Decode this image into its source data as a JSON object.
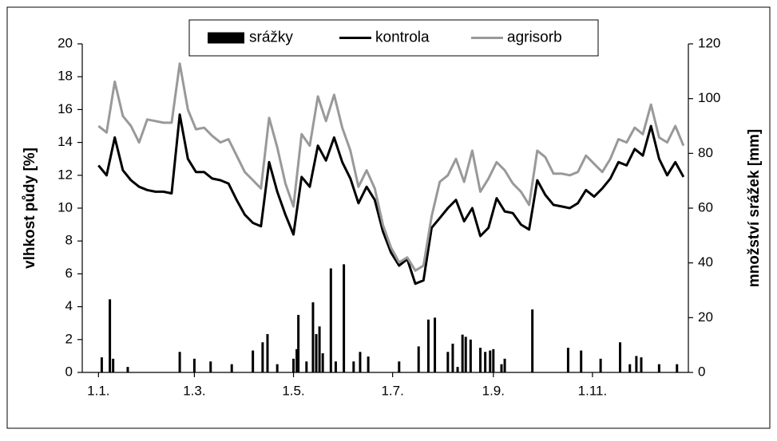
{
  "chart_data": {
    "type": "line-bar",
    "ylabel": "vlhkost půdy [%]",
    "y2label": "množství srážek [mm]",
    "xlim": [
      -10,
      363
    ],
    "xticks": [
      {
        "value": 0,
        "label": "1.1."
      },
      {
        "value": 59,
        "label": "1.3."
      },
      {
        "value": 120,
        "label": "1.5."
      },
      {
        "value": 181,
        "label": "1.7."
      },
      {
        "value": 243,
        "label": "1.9."
      },
      {
        "value": 304,
        "label": "1.11."
      }
    ],
    "ylim": [
      0,
      20
    ],
    "yticks": [
      0,
      2,
      4,
      6,
      8,
      10,
      12,
      14,
      16,
      18,
      20
    ],
    "y2lim": [
      0,
      120
    ],
    "y2ticks": [
      0,
      20,
      40,
      60,
      80,
      100,
      120
    ],
    "legend": "top",
    "x": [
      0,
      5,
      10,
      15,
      20,
      25,
      30,
      35,
      40,
      45,
      50,
      55,
      60,
      65,
      70,
      75,
      80,
      85,
      90,
      95,
      100,
      105,
      110,
      115,
      120,
      125,
      130,
      135,
      140,
      145,
      150,
      155,
      160,
      165,
      170,
      175,
      180,
      185,
      190,
      195,
      200,
      205,
      210,
      215,
      220,
      225,
      230,
      235,
      240,
      245,
      250,
      255,
      260,
      265,
      270,
      275,
      280,
      285,
      290,
      295,
      300,
      305,
      310,
      315,
      320,
      325,
      330,
      335,
      340,
      345,
      350,
      355,
      360
    ],
    "series": [
      {
        "name": "srážky",
        "color": "#000000",
        "axis": "y2",
        "kind": "bar",
        "x": [
          2,
          7,
          9,
          18,
          50,
          59,
          69,
          82,
          95,
          101,
          104,
          110,
          120,
          122,
          123,
          128,
          132,
          134,
          136,
          138,
          143,
          146,
          151,
          157,
          161,
          166,
          185,
          197,
          203,
          207,
          215,
          218,
          221,
          224,
          226,
          229,
          235,
          238,
          241,
          243,
          248,
          250,
          267,
          289,
          297,
          309,
          321,
          327,
          331,
          334,
          345,
          356
        ],
        "values": [
          5.5,
          26.7,
          5,
          2,
          7.5,
          5,
          4,
          3,
          8,
          11,
          14,
          3,
          5,
          8.5,
          21,
          4,
          25.6,
          14,
          16.8,
          7,
          38,
          4,
          39.5,
          4,
          7.5,
          5.8,
          4,
          9.5,
          19.3,
          20,
          7.5,
          10.5,
          2,
          13.8,
          13,
          12,
          9,
          7.5,
          8,
          8.5,
          3,
          5,
          23,
          9,
          8,
          5,
          11,
          3,
          6,
          5.5,
          3,
          3
        ]
      },
      {
        "name": "kontrola",
        "color": "#000000",
        "kind": "line",
        "values": [
          12.6,
          12.0,
          14.3,
          12.3,
          11.7,
          11.3,
          11.1,
          11.0,
          11.0,
          10.9,
          15.7,
          13.0,
          12.2,
          12.2,
          11.8,
          11.7,
          11.5,
          10.5,
          9.6,
          9.1,
          8.9,
          12.8,
          11.0,
          9.6,
          8.4,
          11.9,
          11.3,
          13.8,
          12.9,
          14.3,
          12.8,
          11.8,
          10.3,
          11.3,
          10.5,
          8.6,
          7.3,
          6.5,
          6.9,
          5.4,
          5.6,
          8.8,
          9.4,
          10.0,
          10.5,
          9.2,
          10.0,
          8.3,
          8.8,
          10.6,
          9.8,
          9.7,
          9.0,
          8.7,
          11.7,
          10.8,
          10.2,
          10.1,
          10.0,
          10.3,
          11.1,
          10.7,
          11.2,
          11.8,
          12.8,
          12.6,
          13.6,
          13.2,
          15.0,
          13.0,
          12.0,
          12.8,
          11.9
        ]
      },
      {
        "name": "agrisorb",
        "color": "#999999",
        "kind": "line",
        "values": [
          15.0,
          14.6,
          17.7,
          15.6,
          15.0,
          14.0,
          15.4,
          15.3,
          15.2,
          15.2,
          18.8,
          16.0,
          14.8,
          14.9,
          14.4,
          14.0,
          14.2,
          13.2,
          12.2,
          11.7,
          11.2,
          15.5,
          13.7,
          11.5,
          10.1,
          14.5,
          13.8,
          16.8,
          15.3,
          16.9,
          14.9,
          13.5,
          11.3,
          12.3,
          11.2,
          9.0,
          7.6,
          6.7,
          7.0,
          6.2,
          6.5,
          9.5,
          11.6,
          12.0,
          13.0,
          11.6,
          13.5,
          11.0,
          11.8,
          12.8,
          12.3,
          11.5,
          11.0,
          10.2,
          13.5,
          13.1,
          12.1,
          12.1,
          12.0,
          12.2,
          13.2,
          12.7,
          12.2,
          13.0,
          14.2,
          14.0,
          14.9,
          14.5,
          16.3,
          14.3,
          14.0,
          15.0,
          13.8
        ]
      }
    ]
  }
}
